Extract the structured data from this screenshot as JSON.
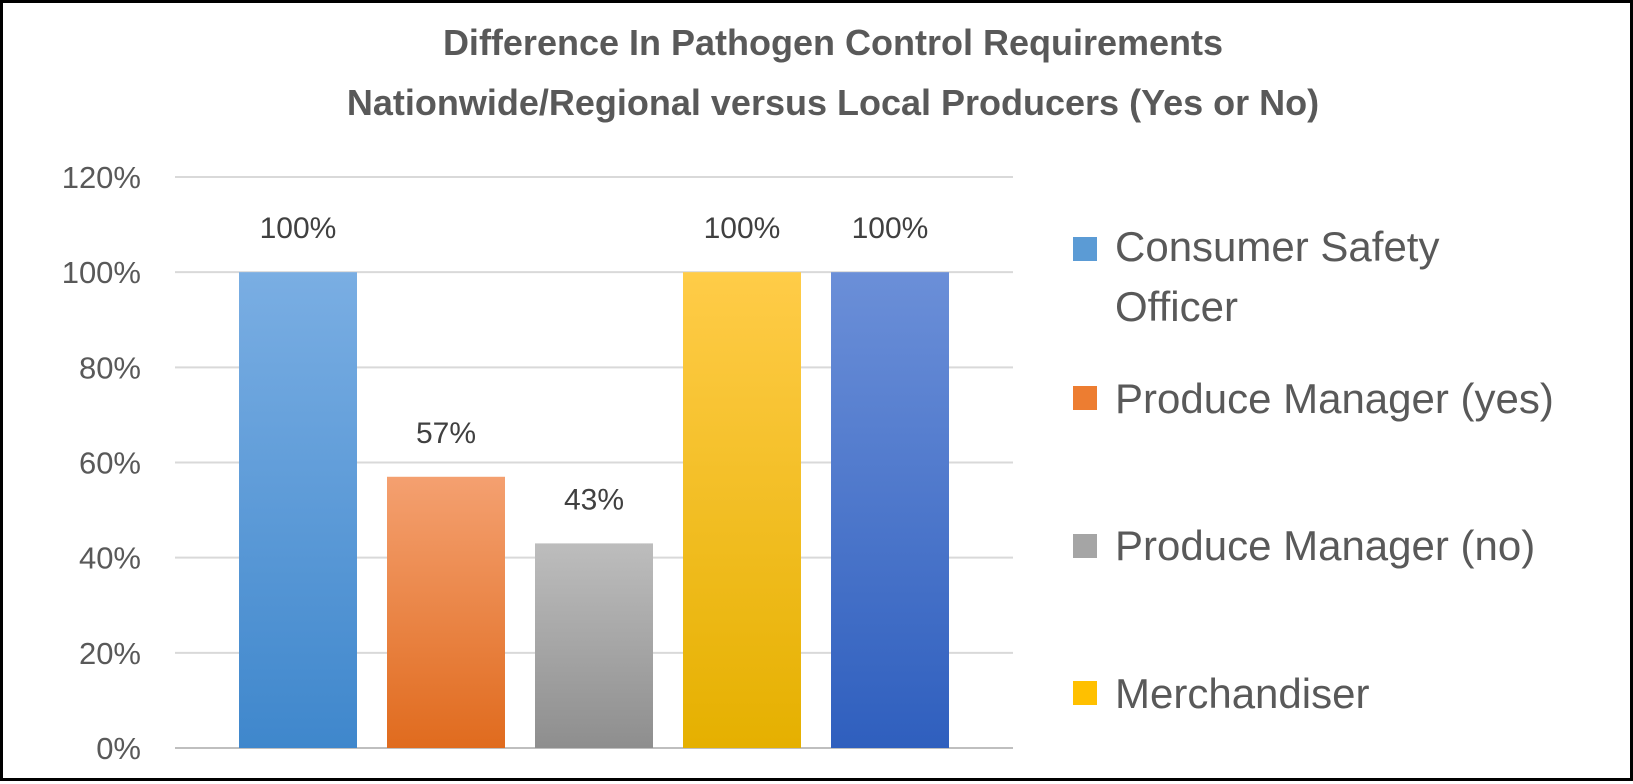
{
  "chart_data": {
    "type": "bar",
    "title": "Difference In Pathogen Control Requirements Nationwide/Regional versus Local Producers (Yes or No)",
    "title_lines": [
      "Difference In Pathogen Control Requirements",
      "Nationwide/Regional versus Local Producers (Yes or No)"
    ],
    "xlabel": "",
    "ylabel": "",
    "ylim": [
      0,
      1.2
    ],
    "yticks": [
      "0%",
      "20%",
      "40%",
      "60%",
      "80%",
      "100%",
      "120%"
    ],
    "grid": true,
    "legend_position": "right",
    "bars": [
      {
        "name": "Consumer Safety Officer",
        "value": 1.0,
        "label": "100%",
        "color_top": "#7aaee3",
        "color_bottom": "#3f87cc"
      },
      {
        "name": "Produce Manager (yes)",
        "value": 0.57,
        "label": "57%",
        "color_top": "#f4a070",
        "color_bottom": "#e06b1e"
      },
      {
        "name": "Produce Manager (no)",
        "value": 0.43,
        "label": "43%",
        "color_top": "#bdbdbd",
        "color_bottom": "#8e8e8e"
      },
      {
        "name": "Merchandiser",
        "value": 1.0,
        "label": "100%",
        "color_top": "#ffcc48",
        "color_bottom": "#e5b000"
      },
      {
        "name": "",
        "value": 1.0,
        "label": "100%",
        "color_top": "#6b8fd8",
        "color_bottom": "#2f5fbe"
      }
    ],
    "legend": [
      {
        "label_lines": [
          "Consumer Safety",
          "Officer"
        ],
        "color": "#5b9bd5"
      },
      {
        "label_lines": [
          "Produce Manager (yes)"
        ],
        "color": "#ed7d31"
      },
      {
        "label_lines": [
          "Produce Manager (no)"
        ],
        "color": "#a5a5a5"
      },
      {
        "label_lines": [
          "Merchandiser"
        ],
        "color": "#ffc000"
      }
    ]
  }
}
